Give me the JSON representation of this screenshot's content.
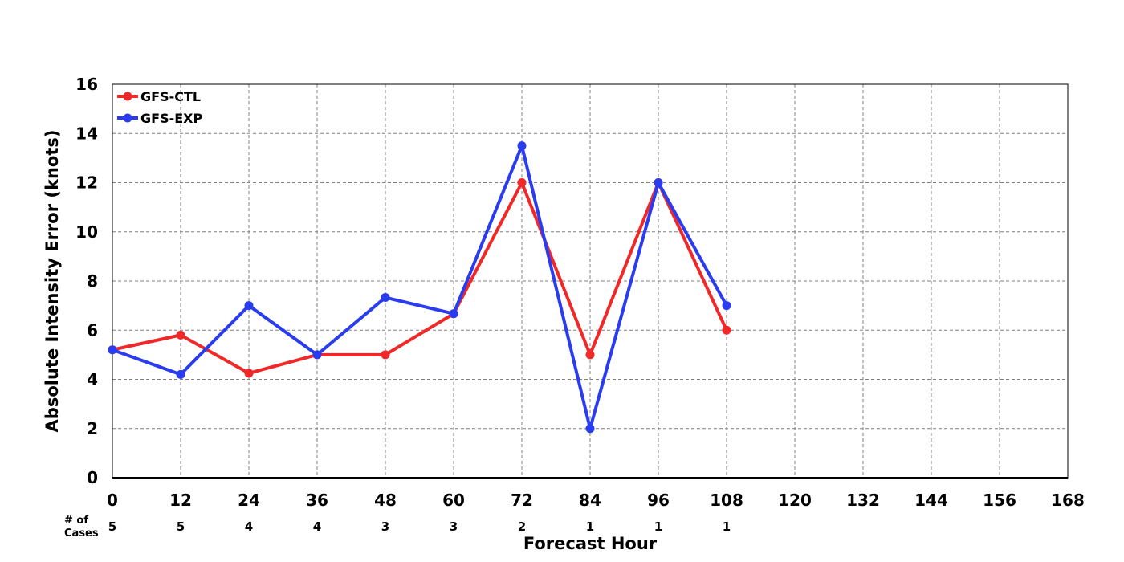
{
  "chart_data": {
    "type": "line",
    "title": "",
    "xlabel": "Forecast Hour",
    "ylabel": "Absolute Intensity Error (knots)",
    "xlim": [
      0,
      168
    ],
    "ylim": [
      0,
      16
    ],
    "x_ticks": [
      0,
      12,
      24,
      36,
      48,
      60,
      72,
      84,
      96,
      108,
      120,
      132,
      144,
      156,
      168
    ],
    "y_ticks": [
      0,
      2,
      4,
      6,
      8,
      10,
      12,
      14,
      16
    ],
    "grid": true,
    "legend_position": "top-left",
    "x": [
      0,
      12,
      24,
      36,
      48,
      60,
      72,
      84,
      96,
      108
    ],
    "series": [
      {
        "name": "GFS-CTL",
        "color": "#f02828",
        "values": [
          5.2,
          5.8,
          4.25,
          5.0,
          5.0,
          6.67,
          12.0,
          5.0,
          12.0,
          6.0
        ]
      },
      {
        "name": "GFS-EXP",
        "color": "#2a3cf0",
        "values": [
          5.2,
          4.2,
          7.0,
          5.0,
          7.33,
          6.67,
          13.5,
          2.0,
          12.0,
          7.0
        ]
      }
    ],
    "cases": {
      "label_line1": "# of",
      "label_line2": "Cases",
      "x": [
        0,
        12,
        24,
        36,
        48,
        60,
        72,
        84,
        96,
        108
      ],
      "counts": [
        "5",
        "5",
        "4",
        "4",
        "3",
        "3",
        "2",
        "1",
        "1",
        "1"
      ]
    }
  }
}
